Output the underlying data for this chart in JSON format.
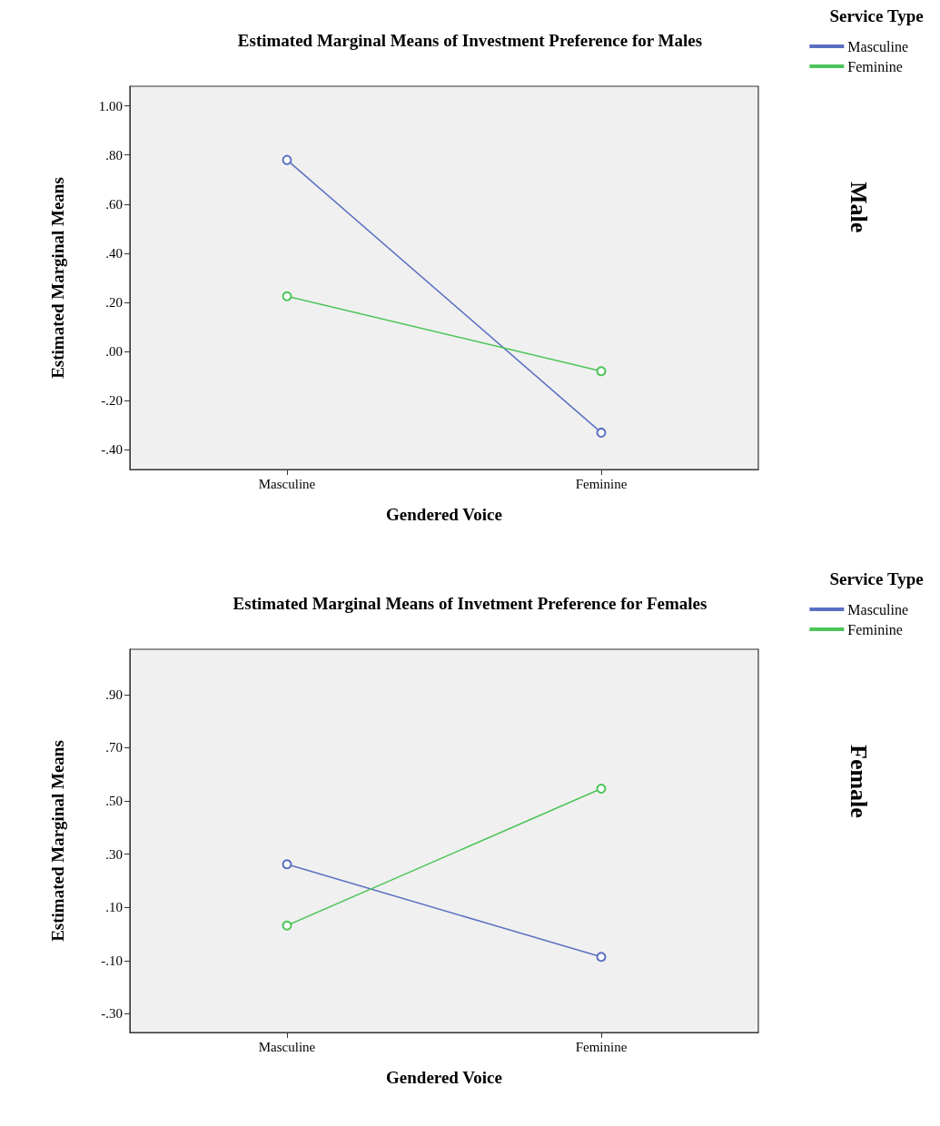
{
  "chart_data": [
    {
      "type": "line",
      "title": "Estimated Marginal Means of Investment Preference for Males",
      "xlabel": "Gendered Voice",
      "ylabel": "Estimated Marginal Means",
      "legend_title": "Service Type",
      "annotations": [
        "Male"
      ],
      "categories": [
        "Masculine",
        "Feminine"
      ],
      "series": [
        {
          "name": "Masculine",
          "color": "#5b6fc2",
          "values": [
            0.78,
            -0.33
          ]
        },
        {
          "name": "Feminine",
          "color": "#4cc458",
          "values": [
            0.225,
            -0.08
          ]
        }
      ],
      "ylim": [
        -0.48,
        1.08
      ],
      "yticks": [
        {
          "value": -0.4,
          "label": "-.40"
        },
        {
          "value": -0.2,
          "label": "-.20"
        },
        {
          "value": 0,
          "label": ".00"
        },
        {
          "value": 0.2,
          "label": ".20"
        },
        {
          "value": 0.4,
          "label": ".40"
        },
        {
          "value": 0.6,
          "label": ".60"
        },
        {
          "value": 0.8,
          "label": ".80"
        },
        {
          "value": 1,
          "label": "1.00"
        }
      ],
      "grid": false,
      "legend": "top right",
      "marker": "circle",
      "line_style": "solid"
    },
    {
      "type": "line",
      "title": "Estimated Marginal Means of Invetment Preference for Females",
      "xlabel": "Gendered Voice",
      "ylabel": "Estimated Marginal Means",
      "legend_title": "Service Type",
      "annotations": [
        "Female"
      ],
      "categories": [
        "Masculine",
        "Feminine"
      ],
      "series": [
        {
          "name": "Masculine",
          "color": "#5b6fc2",
          "values": [
            0.262,
            -0.086
          ]
        },
        {
          "name": "Feminine",
          "color": "#4cc458",
          "values": [
            0.032,
            0.546
          ]
        }
      ],
      "ylim": [
        -0.37,
        1.07
      ],
      "yticks": [
        {
          "value": -0.3,
          "label": "-.30"
        },
        {
          "value": -0.1,
          "label": "-.10"
        },
        {
          "value": 0.1,
          "label": ".10"
        },
        {
          "value": 0.3,
          "label": ".30"
        },
        {
          "value": 0.5,
          "label": ".50"
        },
        {
          "value": 0.7,
          "label": ".70"
        },
        {
          "value": 0.9,
          "label": ".90"
        }
      ],
      "grid": false,
      "legend": "top right",
      "marker": "circle",
      "line_style": "solid"
    }
  ]
}
